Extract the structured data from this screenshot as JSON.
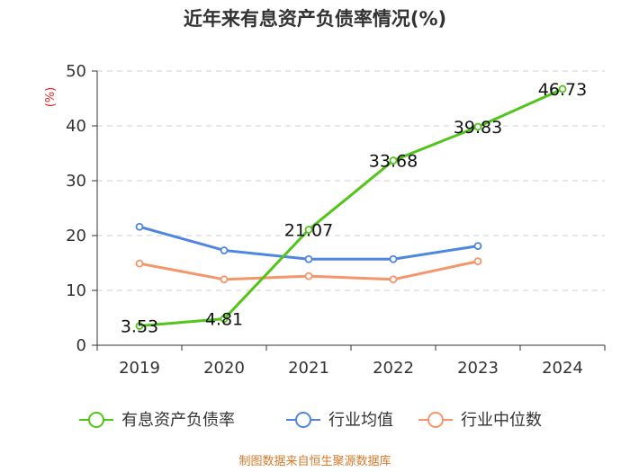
{
  "chart_data": {
    "type": "line",
    "title": "近年来有息资产负债率情况(%)",
    "ylabel": "(%)",
    "xlabel": "",
    "categories": [
      "2019",
      "2020",
      "2021",
      "2022",
      "2023",
      "2024"
    ],
    "ylim": [
      0,
      50
    ],
    "yticks": [
      0,
      10,
      20,
      30,
      40,
      50
    ],
    "grid": true,
    "legend_position": "bottom",
    "series": [
      {
        "name": "有息资产负债率",
        "color": "#52c41a",
        "values": [
          3.53,
          4.81,
          21.07,
          33.68,
          39.83,
          46.73
        ],
        "labels": [
          "3.53",
          "4.81",
          "21.07",
          "33.68",
          "39.83",
          "46.73"
        ]
      },
      {
        "name": "行业均值",
        "color": "#4f86e0",
        "values": [
          21.6,
          17.3,
          15.7,
          15.7,
          18.1,
          null
        ]
      },
      {
        "name": "行业中位数",
        "color": "#f5956a",
        "values": [
          14.9,
          12.0,
          12.6,
          12.0,
          15.3,
          null
        ]
      }
    ]
  },
  "footer": {
    "source": "制图数据来自恒生聚源数据库"
  }
}
